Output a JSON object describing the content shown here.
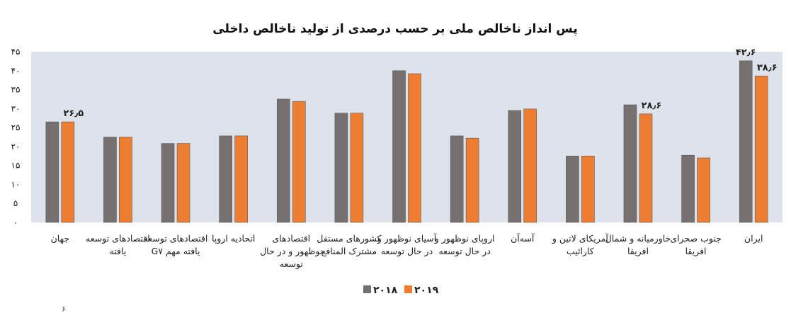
{
  "chart_data": {
    "type": "bar",
    "title": "پس انداز ناخالص ملی بر حسب درصدی از تولید ناخالص داخلی",
    "xlabel": "",
    "ylabel": "",
    "ylim": [
      0,
      45
    ],
    "y_ticks": [
      0,
      5,
      10,
      15,
      20,
      25,
      30,
      35,
      40,
      45
    ],
    "y_tick_labels": [
      "۰",
      "۵",
      "۱۰",
      "۱۵",
      "۲۰",
      "۲۵",
      "۳۰",
      "۳۵",
      "۴۰",
      "۴۵"
    ],
    "grid": false,
    "legend_position": "bottom",
    "categories": [
      [
        "جهان"
      ],
      [
        "اقتصادهای توسعه",
        "یافته"
      ],
      [
        "اقتصادهای توسعه",
        "یافته مهم G۷"
      ],
      [
        "اتحادیه اروپا"
      ],
      [
        "اقتصادهای",
        "نوظهور و در حال",
        "توسعه"
      ],
      [
        "کشورهای مستقل",
        "مشترک المنافع"
      ],
      [
        "آسیای نوظهور و",
        "در حال توسعه"
      ],
      [
        "اروپای نوظهور و",
        "در حال توسعه"
      ],
      [
        "آسه‌آن"
      ],
      [
        "آمریکای لاتین و",
        "کارائیب"
      ],
      [
        "خاورمیانه و شمال",
        "افریقا"
      ],
      [
        "جنوب صحرای",
        "افریقا"
      ],
      [
        "ایران"
      ]
    ],
    "series": [
      {
        "name": "۲۰۱۸",
        "color": "#767070",
        "values": [
          26.5,
          22.5,
          20.8,
          22.8,
          32.5,
          28.8,
          40.0,
          22.8,
          29.5,
          17.5,
          31.0,
          17.7,
          42.6
        ]
      },
      {
        "name": "۲۰۱۹",
        "color": "#ED7D31",
        "values": [
          26.5,
          22.5,
          20.8,
          22.8,
          31.9,
          28.8,
          39.2,
          22.2,
          29.9,
          17.5,
          28.6,
          17.0,
          38.6
        ]
      }
    ],
    "data_labels": [
      {
        "category_index": 0,
        "series_index": 1,
        "text": "۲۶٫۵"
      },
      {
        "category_index": 10,
        "series_index": 1,
        "text": "۲۸٫۶"
      },
      {
        "category_index": 12,
        "series_index": 0,
        "text": "۴۲٫۶"
      },
      {
        "category_index": 12,
        "series_index": 1,
        "text": "۳۸٫۶"
      }
    ],
    "page_number": "۶"
  }
}
